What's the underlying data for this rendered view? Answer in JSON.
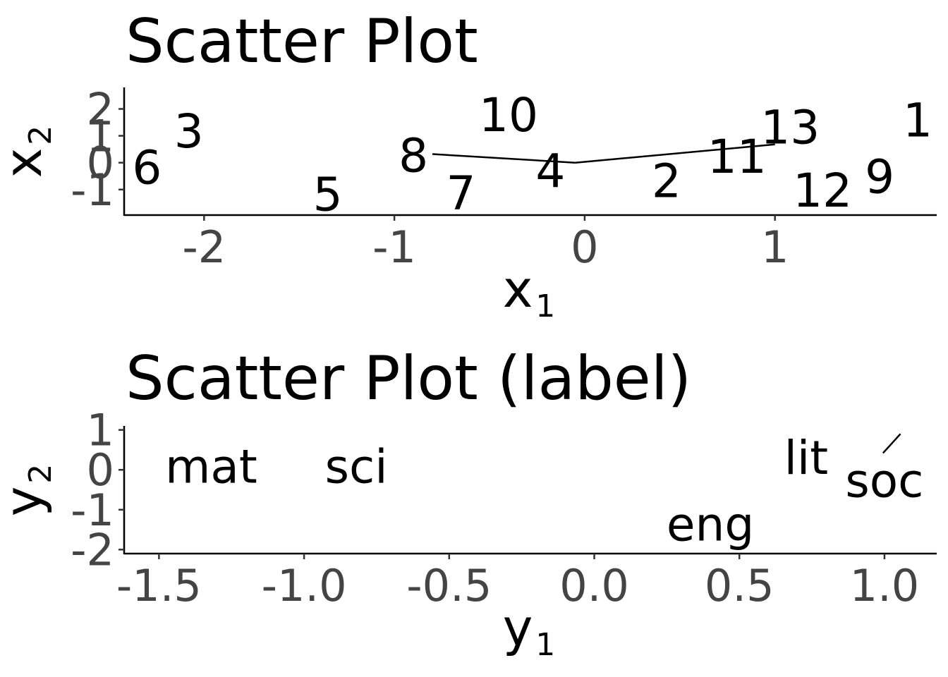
{
  "chart_data": [
    {
      "type": "scatter",
      "title": "Scatter Plot",
      "xlabel": "x",
      "xlabel_sub": "1",
      "ylabel": "x",
      "ylabel_sub": "2",
      "xlim": [
        -2.42,
        1.85
      ],
      "ylim": [
        -1.95,
        2.8
      ],
      "x_ticks": [
        -2,
        -1,
        0,
        1
      ],
      "y_ticks": [
        -1,
        0,
        1,
        2
      ],
      "grid": false,
      "points": [
        {
          "label": "1",
          "x": 1.75,
          "y": 1.6
        },
        {
          "label": "2",
          "x": 0.43,
          "y": -0.65
        },
        {
          "label": "3",
          "x": -2.08,
          "y": 1.2
        },
        {
          "label": "4",
          "x": -0.18,
          "y": -0.28
        },
        {
          "label": "5",
          "x": -1.35,
          "y": -1.15
        },
        {
          "label": "6",
          "x": -2.3,
          "y": -0.15
        },
        {
          "label": "7",
          "x": -0.65,
          "y": -1.1
        },
        {
          "label": "8",
          "x": -0.9,
          "y": 0.3
        },
        {
          "label": "9",
          "x": 1.55,
          "y": -0.5
        },
        {
          "label": "10",
          "x": -0.4,
          "y": 1.8
        },
        {
          "label": "11",
          "x": 0.8,
          "y": 0.25
        },
        {
          "label": "12",
          "x": 1.25,
          "y": -1.0
        },
        {
          "label": "13",
          "x": 1.08,
          "y": 1.35
        }
      ],
      "segments": [
        {
          "from": [
            -0.8,
            0.32
          ],
          "to": [
            -0.05,
            0.0
          ]
        },
        {
          "from": [
            -0.05,
            0.0
          ],
          "to": [
            1.0,
            0.68
          ]
        }
      ]
    },
    {
      "type": "scatter",
      "title": "Scatter Plot (label)",
      "xlabel": "y",
      "xlabel_sub": "1",
      "ylabel": "y",
      "ylabel_sub": "2",
      "xlim": [
        -1.62,
        1.18
      ],
      "ylim": [
        -2.1,
        1.1
      ],
      "x_ticks": [
        -1.5,
        -1.0,
        -0.5,
        0.0,
        0.5,
        1.0
      ],
      "y_ticks": [
        -2,
        -1,
        0,
        1
      ],
      "grid": false,
      "points": [
        {
          "label": "mat",
          "x": -1.32,
          "y": 0.1
        },
        {
          "label": "sci",
          "x": -0.82,
          "y": 0.1
        },
        {
          "label": "eng",
          "x": 0.4,
          "y": -1.35
        },
        {
          "label": "lit",
          "x": 0.73,
          "y": 0.32
        },
        {
          "label": "soc",
          "x": 1.0,
          "y": -0.25
        }
      ],
      "segments": [
        {
          "from": [
            0.995,
            0.42
          ],
          "to": [
            1.055,
            0.9
          ]
        }
      ]
    }
  ]
}
